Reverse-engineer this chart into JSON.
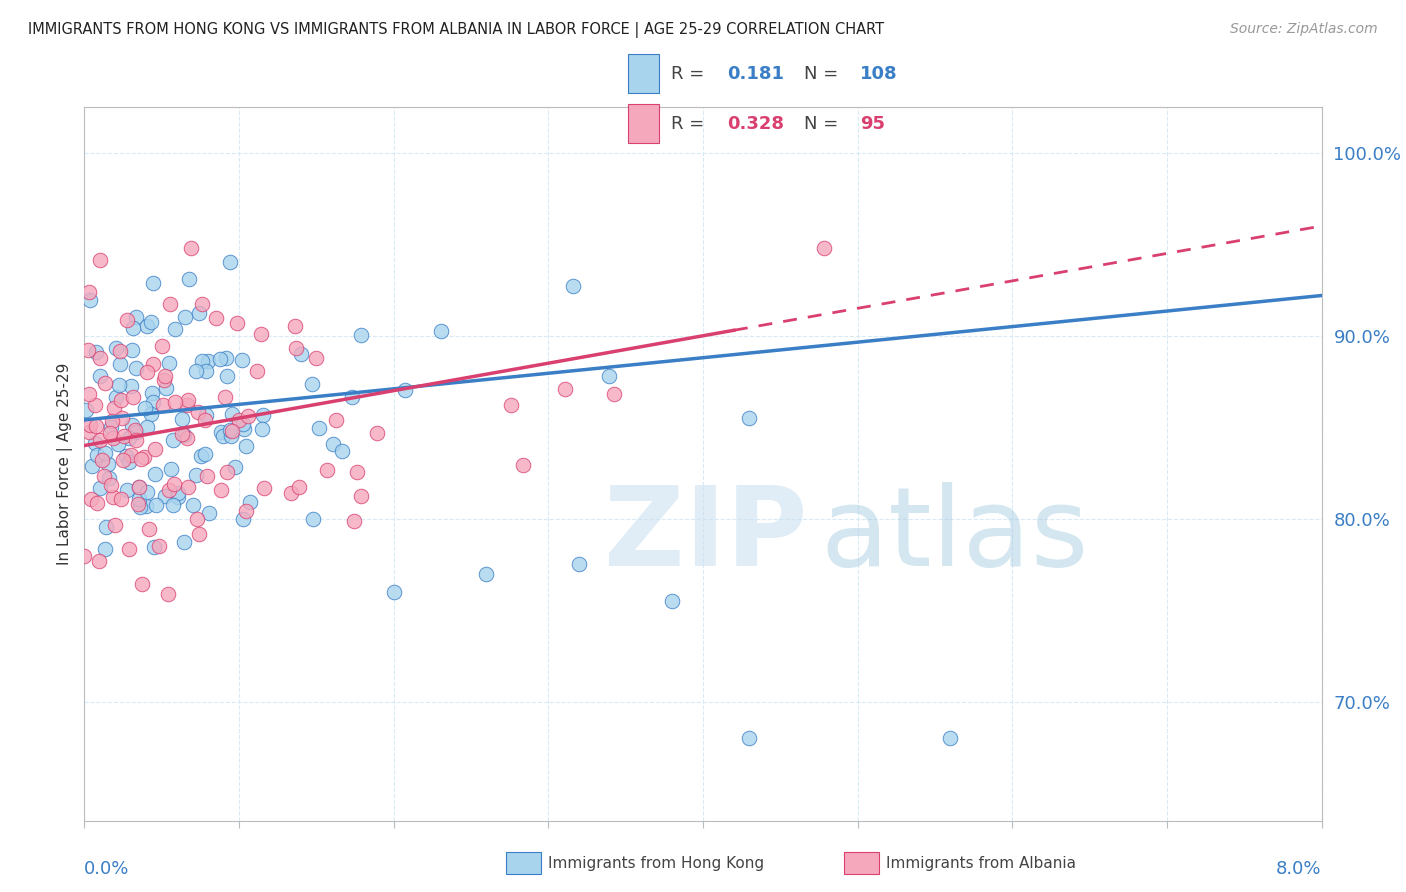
{
  "title": "IMMIGRANTS FROM HONG KONG VS IMMIGRANTS FROM ALBANIA IN LABOR FORCE | AGE 25-29 CORRELATION CHART",
  "source": "Source: ZipAtlas.com",
  "ylabel": "In Labor Force | Age 25-29",
  "R_blue": 0.181,
  "N_blue": 108,
  "R_pink": 0.328,
  "N_pink": 95,
  "xlim": [
    0.0,
    0.08
  ],
  "ylim": [
    0.635,
    1.025
  ],
  "yticks": [
    0.7,
    0.8,
    0.9,
    1.0
  ],
  "ytick_labels": [
    "70.0%",
    "80.0%",
    "90.0%",
    "100.0%"
  ],
  "color_blue": "#A8D4EE",
  "color_pink": "#F5A8BC",
  "line_color_blue": "#3A7EC6",
  "line_color_pink": "#D94070",
  "grid_color": "#D8EAF5",
  "bg_color": "#FFFFFF",
  "trend_blue_x0": 0.0,
  "trend_blue_y0": 0.854,
  "trend_blue_x1": 0.08,
  "trend_blue_y1": 0.922,
  "trend_pink_x0": 0.0,
  "trend_pink_y0": 0.84,
  "trend_pink_x1": 0.08,
  "trend_pink_y1": 0.96,
  "trend_pink_solid_end": 0.042
}
